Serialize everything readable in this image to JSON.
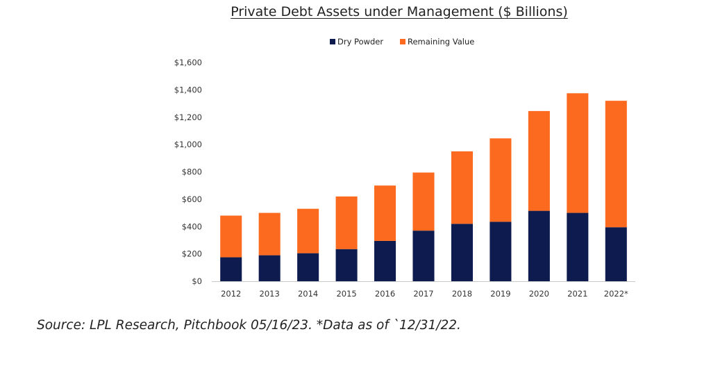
{
  "chart_data": {
    "type": "bar",
    "stacked": true,
    "title": "Private Debt Assets under Management ($ Billions)",
    "xlabel": "",
    "ylabel": "",
    "categories": [
      "2012",
      "2013",
      "2014",
      "2015",
      "2016",
      "2017",
      "2018",
      "2019",
      "2020",
      "2021",
      "2022*"
    ],
    "series": [
      {
        "name": "Dry Powder",
        "color": "#0d1b4f",
        "values": [
          175,
          190,
          205,
          235,
          295,
          370,
          420,
          435,
          515,
          500,
          395
        ]
      },
      {
        "name": "Remaining Value",
        "color": "#fb6a1e",
        "values": [
          305,
          310,
          325,
          385,
          405,
          425,
          530,
          610,
          730,
          875,
          925
        ]
      }
    ],
    "ylim": [
      0,
      1600
    ],
    "yticks": [
      0,
      200,
      400,
      600,
      800,
      1000,
      1200,
      1400,
      1600
    ],
    "ytick_labels": [
      "$0",
      "$200",
      "$400",
      "$600",
      "$800",
      "$1,000",
      "$1,200",
      "$1,400",
      "$1,600"
    ],
    "grid": false,
    "legend_position": "top-center"
  },
  "footer": {
    "source": "Source: LPL Research, Pitchbook 05/16/23. *Data as of `12/31/22."
  }
}
